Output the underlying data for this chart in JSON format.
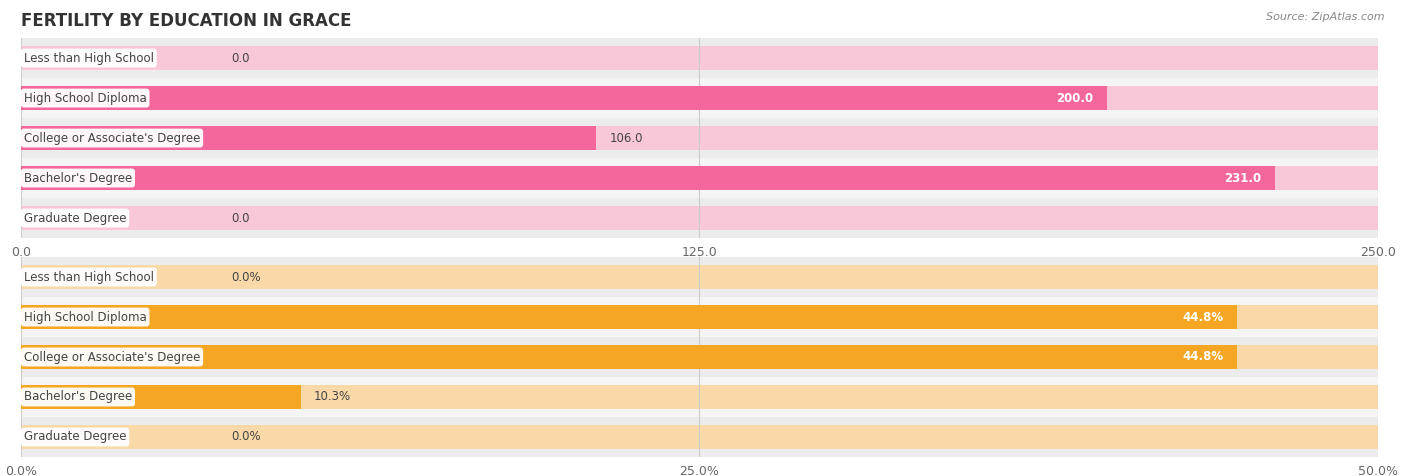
{
  "title": "FERTILITY BY EDUCATION IN GRACE",
  "source": "Source: ZipAtlas.com",
  "top_chart": {
    "categories": [
      "Less than High School",
      "High School Diploma",
      "College or Associate's Degree",
      "Bachelor's Degree",
      "Graduate Degree"
    ],
    "values": [
      0.0,
      200.0,
      106.0,
      231.0,
      0.0
    ],
    "xlim": [
      0,
      250.0
    ],
    "xticks": [
      0.0,
      125.0,
      250.0
    ],
    "xtick_labels": [
      "0.0",
      "125.0",
      "250.0"
    ],
    "bar_color_strong": "#F4679D",
    "bar_color_light": "#F9C8D8",
    "value_labels": [
      "0.0",
      "200.0",
      "106.0",
      "231.0",
      "0.0"
    ],
    "bg_color": "#f5f5f5"
  },
  "bottom_chart": {
    "categories": [
      "Less than High School",
      "High School Diploma",
      "College or Associate's Degree",
      "Bachelor's Degree",
      "Graduate Degree"
    ],
    "values": [
      0.0,
      44.8,
      44.8,
      10.3,
      0.0
    ],
    "xlim": [
      0,
      50.0
    ],
    "xticks": [
      0.0,
      25.0,
      50.0
    ],
    "xtick_labels": [
      "0.0%",
      "25.0%",
      "50.0%"
    ],
    "bar_color_strong": "#F5A623",
    "bar_color_light": "#FAD9A8",
    "value_labels": [
      "0.0%",
      "44.8%",
      "44.8%",
      "10.3%",
      "0.0%"
    ],
    "bg_color": "#f5f5f5"
  },
  "label_box_color": "#ffffff",
  "label_text_color": "#444444",
  "bar_height": 0.62,
  "row_bg_colors": [
    "#ececec",
    "#f5f5f5"
  ],
  "title_color": "#333333",
  "title_fontsize": 12,
  "tick_fontsize": 9,
  "label_fontsize": 8.5,
  "value_fontsize": 8.5
}
